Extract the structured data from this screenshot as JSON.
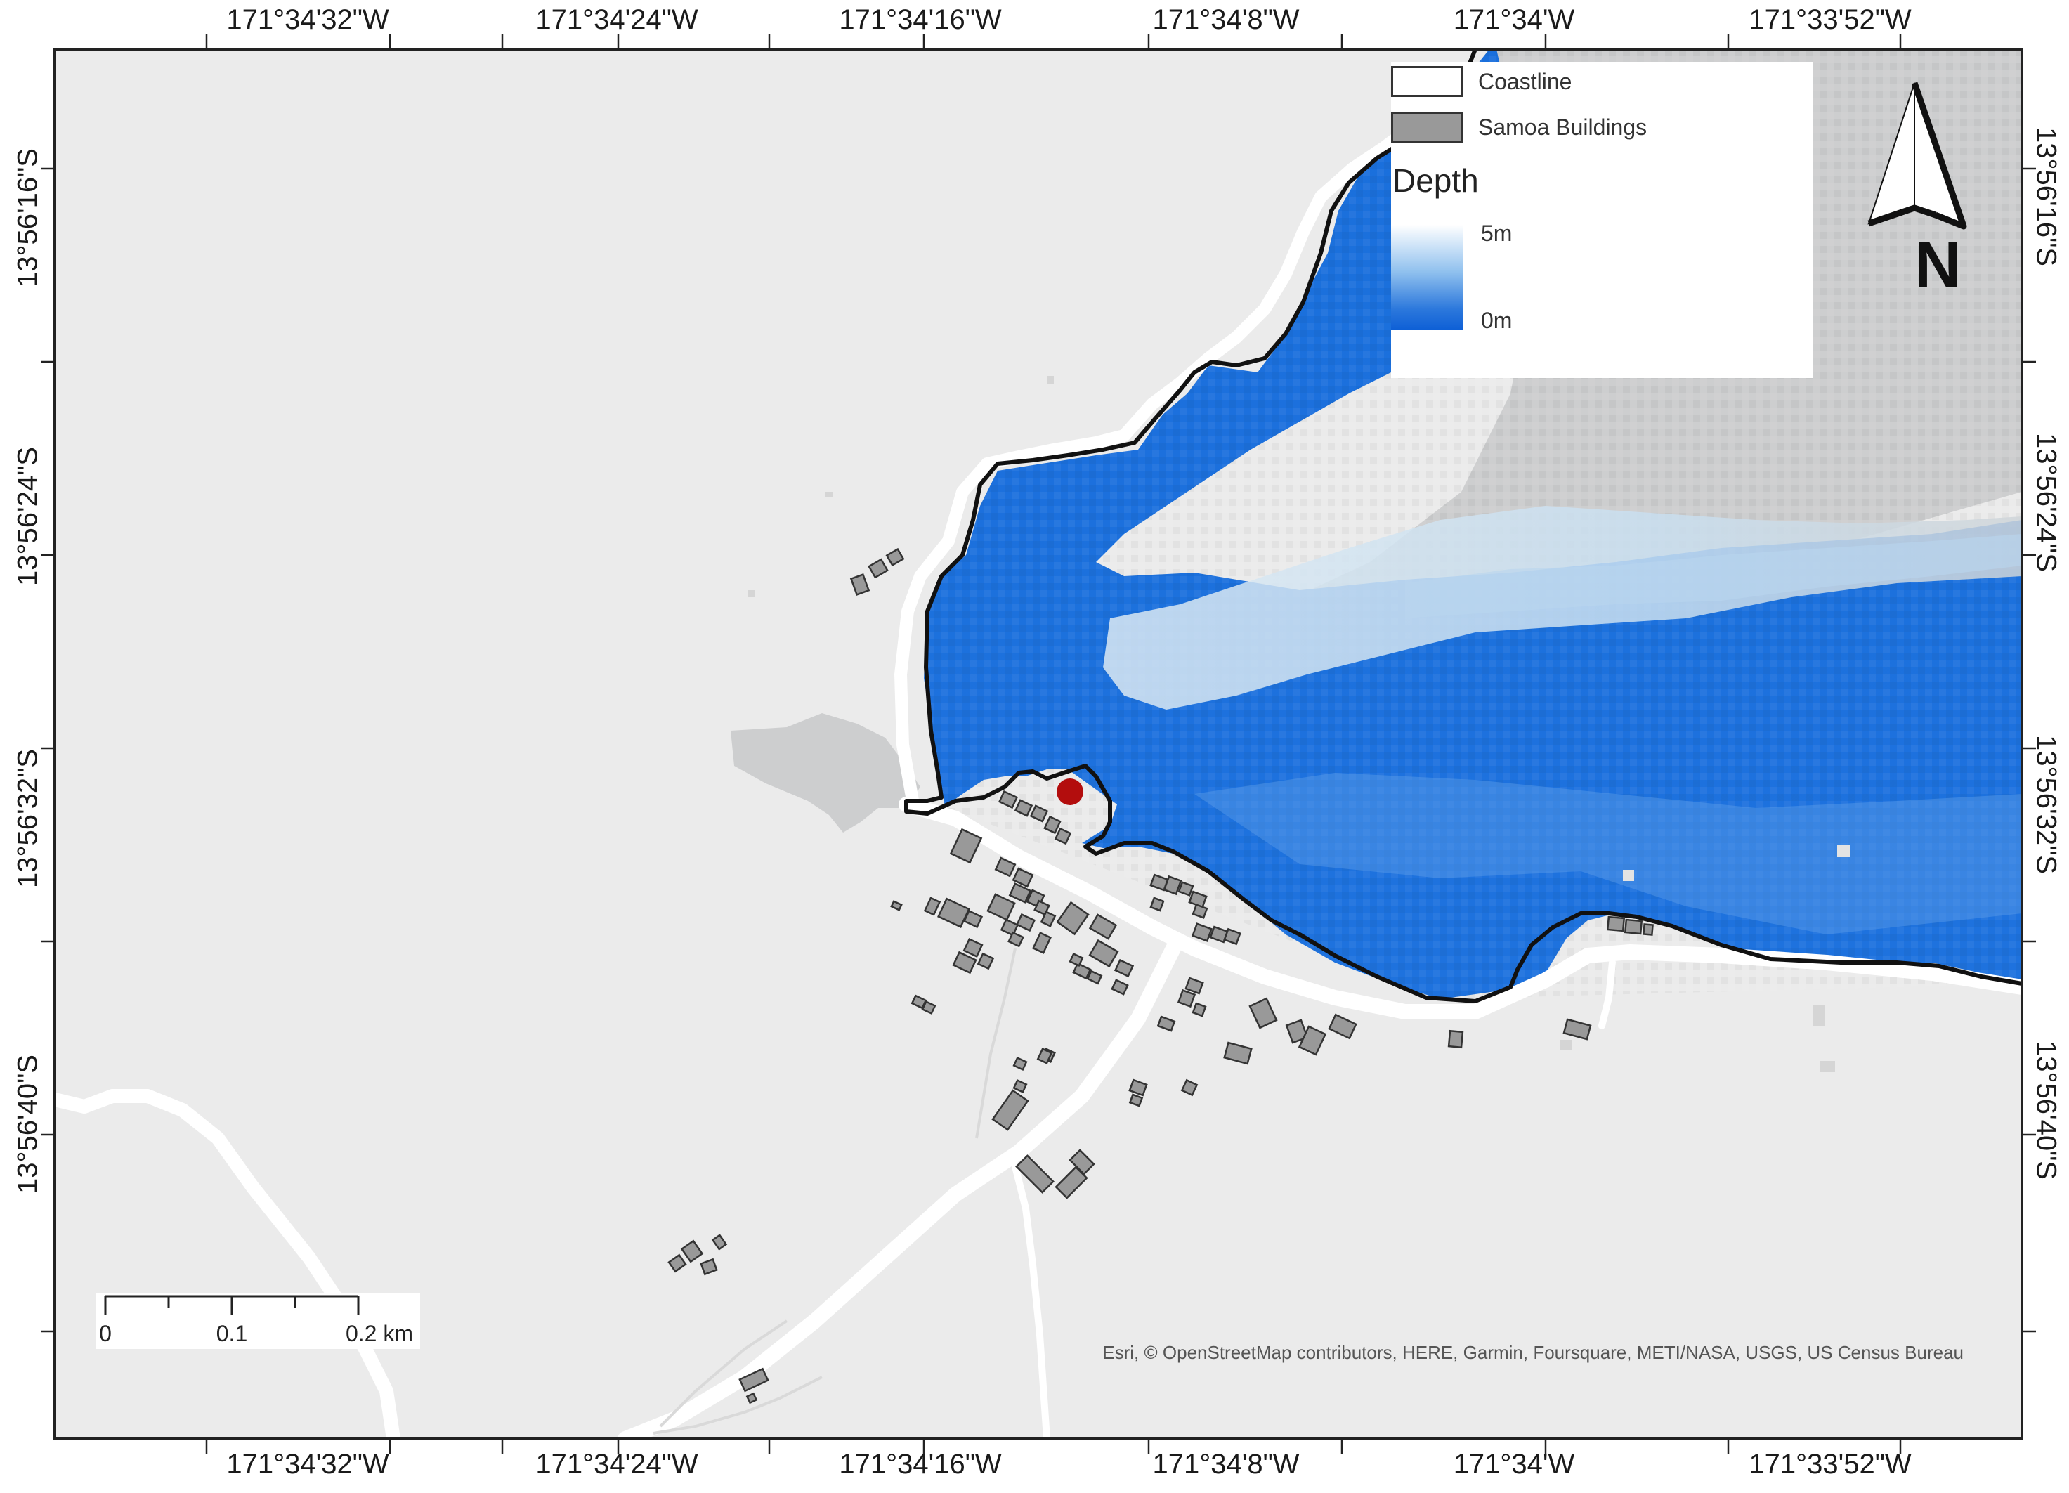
{
  "map": {
    "longitude_labels": [
      "171°34'32\"W",
      "171°34'24\"W",
      "171°34'16\"W",
      "171°34'8\"W",
      "171°34'W",
      "171°33'52\"W"
    ],
    "latitude_labels": [
      "13°56'16\"S",
      "13°56'24\"S",
      "13°56'32\"S",
      "13°56'40\"S"
    ],
    "flood_marker_color": "#b30d0d"
  },
  "legend": {
    "coastline_label": "Coastline",
    "buildings_label": "Samoa Buildings",
    "depth_title": "Depth",
    "depth_max_label": "5m",
    "depth_min_label": "0m",
    "depth_colors": [
      "#ffffff",
      "#8fc0ee",
      "#0d5fd6"
    ]
  },
  "north_arrow": {
    "label": "N"
  },
  "scale_bar": {
    "labels": [
      "0",
      "0.1",
      "0.2 km"
    ]
  },
  "attribution": "Esri, © OpenStreetMap contributors, HERE, Garmin, Foursquare, METI/NASA, USGS, US Census Bureau"
}
